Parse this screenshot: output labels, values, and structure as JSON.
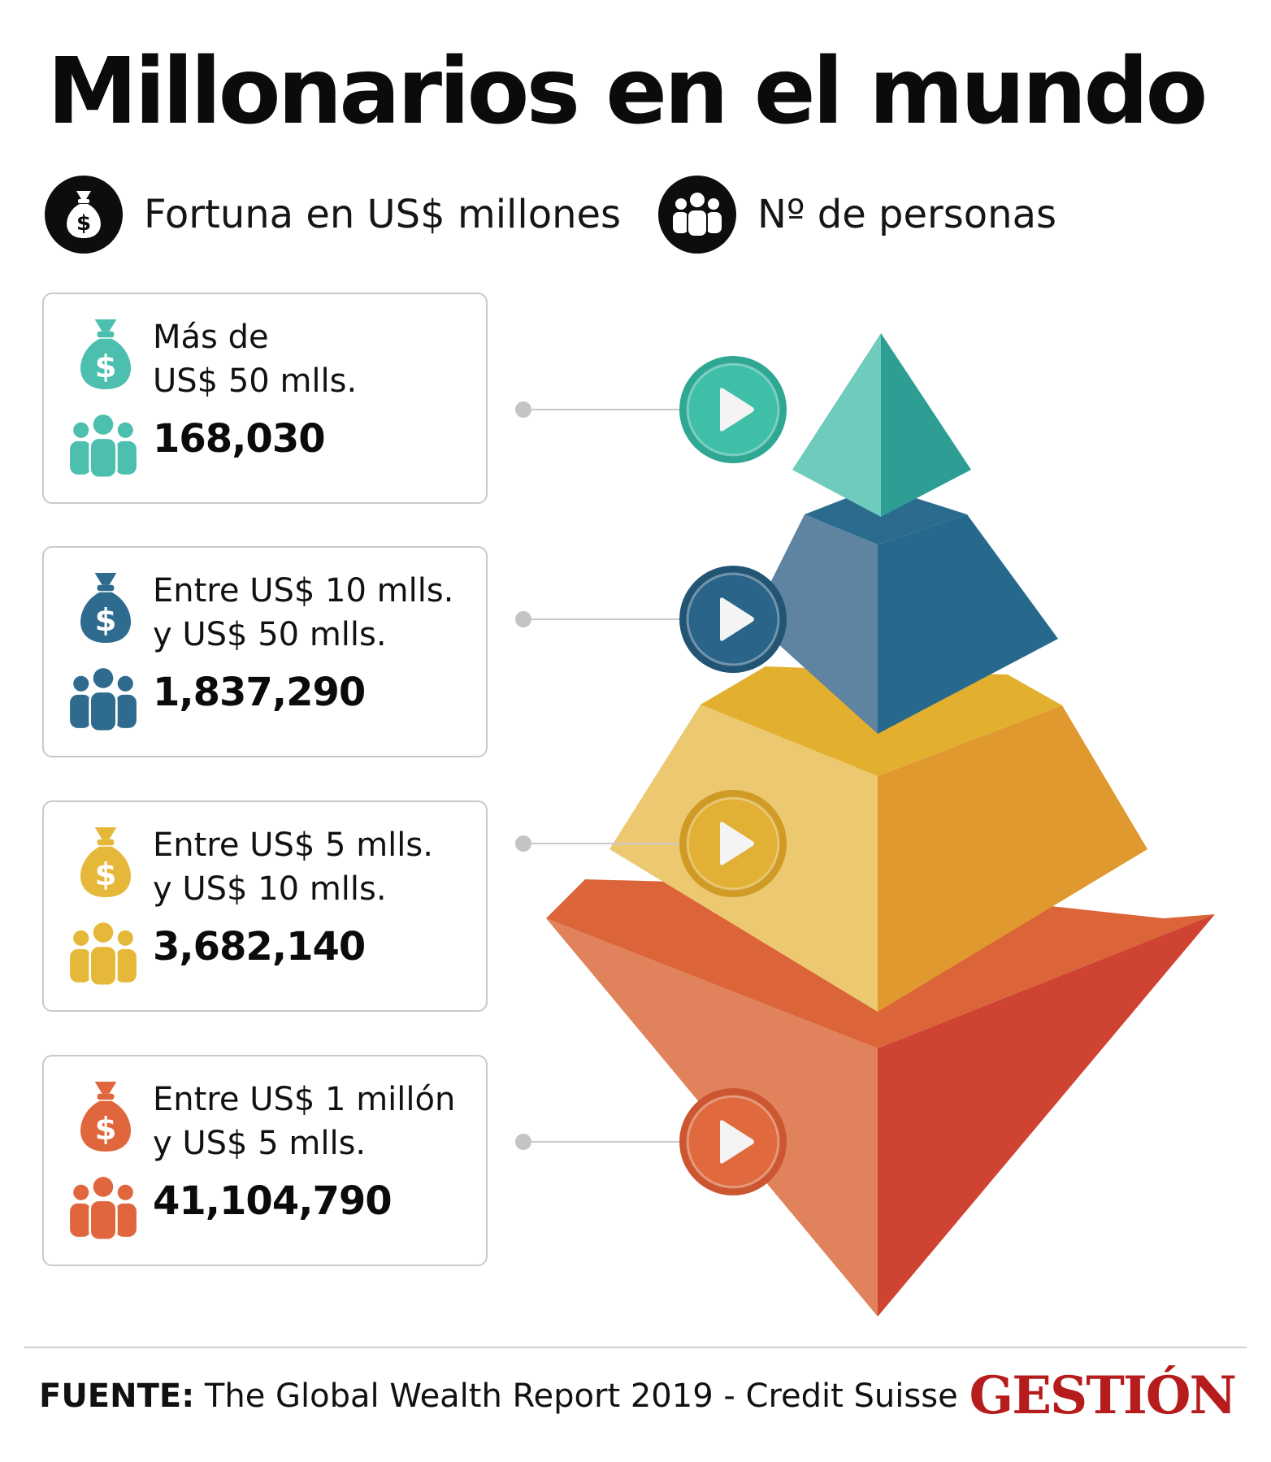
{
  "title": "Millonarios en el mundo",
  "legend": {
    "fortune": {
      "label": "Fortuna en US$ millones",
      "icon": "money-bag-icon"
    },
    "people": {
      "label": "Nº de personas",
      "icon": "people-group-icon"
    }
  },
  "colors": {
    "tier1": "#4dbfae",
    "tier2": "#2f6b8f",
    "tier3": "#e6b83a",
    "tier4": "#e0673d"
  },
  "chart_data": {
    "type": "pyramid",
    "categories": [
      "Más de US$ 50 mlls.",
      "Entre US$ 10 mlls. y US$ 50 mlls.",
      "Entre US$ 5 mlls. y US$ 10 mlls.",
      "Entre US$ 1 millón y US$ 5 mlls."
    ],
    "values": [
      168030,
      1837290,
      3682140,
      41104790
    ],
    "tiers": [
      {
        "range_line1": "Más de",
        "range_line2": "US$ 50 mlls.",
        "count": "168,030",
        "value": 168030,
        "color": "#4dbfae"
      },
      {
        "range_line1": "Entre US$ 10 mlls.",
        "range_line2": "y US$ 50 mlls.",
        "count": "1,837,290",
        "value": 1837290,
        "color": "#2f6b8f"
      },
      {
        "range_line1": "Entre US$ 5 mlls.",
        "range_line2": "y US$ 10 mlls.",
        "count": "3,682,140",
        "value": 3682140,
        "color": "#e6b83a"
      },
      {
        "range_line1": "Entre US$ 1 millón",
        "range_line2": "y US$ 5 mlls.",
        "count": "41,104,790",
        "value": 41104790,
        "color": "#e0673d"
      }
    ]
  },
  "footer": {
    "source_label": "FUENTE:",
    "source_text": " The Global Wealth Report 2019 -  Credit Suisse",
    "logo": "GESTIÓN"
  }
}
